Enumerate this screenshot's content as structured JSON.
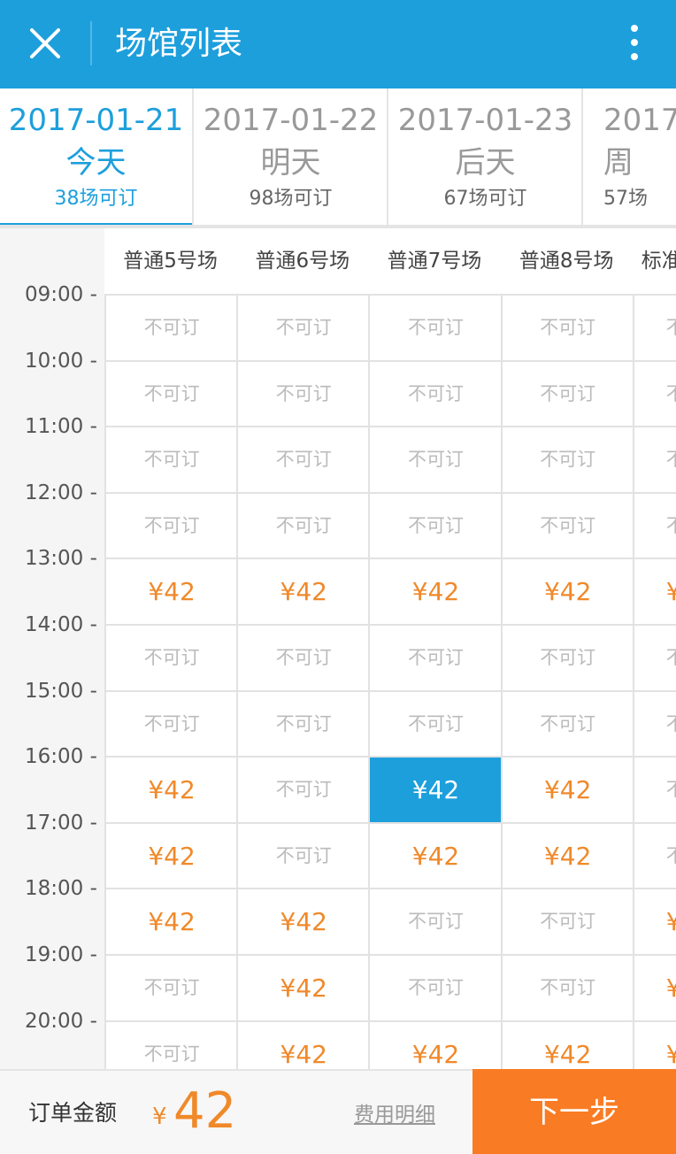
{
  "header": {
    "title": "场馆列表",
    "close_icon": "close-icon",
    "more_icon": "more-vertical-icon",
    "color": "#1d9fdc"
  },
  "dates": [
    {
      "date": "2017-01-21",
      "weekday": "今天",
      "count": "38场可订",
      "active": true
    },
    {
      "date": "2017-01-22",
      "weekday": "明天",
      "count": "98场可订",
      "active": false
    },
    {
      "date": "2017-01-23",
      "weekday": "后天",
      "count": "67场可订",
      "active": false
    },
    {
      "date": "2017-",
      "weekday": "周",
      "count": "57场",
      "active": false
    }
  ],
  "courts": [
    "普通5号场",
    "普通6号场",
    "普通7号场",
    "普通8号场",
    "标准"
  ],
  "times": [
    "09:00 -",
    "10:00 -",
    "11:00 -",
    "12:00 -",
    "13:00 -",
    "14:00 -",
    "15:00 -",
    "16:00 -",
    "17:00 -",
    "18:00 -",
    "19:00 -",
    "20:00 -"
  ],
  "slot_texts": {
    "unavailable": "不可订",
    "price": "¥42",
    "partial_unavailable": "不",
    "partial_price": "¥"
  },
  "grid": [
    [
      "na",
      "na",
      "na",
      "na",
      "na"
    ],
    [
      "na",
      "na",
      "na",
      "na",
      "na"
    ],
    [
      "na",
      "na",
      "na",
      "na",
      "na"
    ],
    [
      "na",
      "na",
      "na",
      "na",
      "na"
    ],
    [
      "p",
      "p",
      "p",
      "p",
      "p"
    ],
    [
      "na",
      "na",
      "na",
      "na",
      "na"
    ],
    [
      "na",
      "na",
      "na",
      "na",
      "na"
    ],
    [
      "p",
      "na",
      "sel",
      "p",
      "na"
    ],
    [
      "p",
      "na",
      "p",
      "p",
      "na"
    ],
    [
      "p",
      "p",
      "na",
      "na",
      "p"
    ],
    [
      "na",
      "p",
      "na",
      "na",
      "p"
    ],
    [
      "na",
      "p",
      "p",
      "p",
      "p"
    ]
  ],
  "colors": {
    "primary": "#1d9fdc",
    "price": "#f0892a",
    "next_button": "#f97c24"
  },
  "footer": {
    "label": "订单金额",
    "currency": "¥",
    "amount": "42",
    "detail_link": "费用明细",
    "next_button": "下一步"
  }
}
